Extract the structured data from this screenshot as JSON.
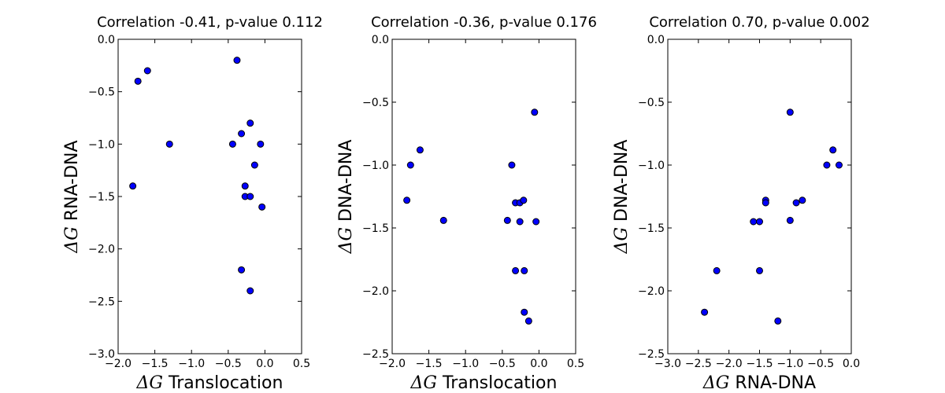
{
  "chart_data": [
    {
      "type": "scatter",
      "title": "Correlation -0.41, p-value 0.112",
      "xlabel_symbol": "ΔG",
      "xlabel_text": " Translocation",
      "ylabel_symbol": "ΔG",
      "ylabel_text": " RNA-DNA",
      "xlim": [
        -2.0,
        0.5
      ],
      "ylim": [
        -3.0,
        0.0
      ],
      "xticks": [
        -2.0,
        -1.5,
        -1.0,
        -0.5,
        0.0,
        0.5
      ],
      "xtick_labels": [
        "−2.0",
        "−1.5",
        "−1.0",
        "−0.5",
        "0.0",
        "0.5"
      ],
      "yticks": [
        -3.0,
        -2.5,
        -2.0,
        -1.5,
        -1.0,
        -0.5,
        0.0
      ],
      "ytick_labels": [
        "−3.0",
        "−2.5",
        "−2.0",
        "−1.5",
        "−1.0",
        "−0.5",
        "0.0"
      ],
      "color": "#0000ff",
      "points": [
        {
          "x": -1.8,
          "y": -1.4
        },
        {
          "x": -1.73,
          "y": -0.4
        },
        {
          "x": -1.6,
          "y": -0.3
        },
        {
          "x": -1.3,
          "y": -1.0
        },
        {
          "x": -0.44,
          "y": -1.0
        },
        {
          "x": -0.38,
          "y": -0.2
        },
        {
          "x": -0.32,
          "y": -0.9
        },
        {
          "x": -0.32,
          "y": -2.2
        },
        {
          "x": -0.27,
          "y": -1.4
        },
        {
          "x": -0.27,
          "y": -1.5
        },
        {
          "x": -0.2,
          "y": -0.8
        },
        {
          "x": -0.2,
          "y": -1.5
        },
        {
          "x": -0.2,
          "y": -2.4
        },
        {
          "x": -0.14,
          "y": -1.2
        },
        {
          "x": -0.06,
          "y": -1.0
        },
        {
          "x": -0.04,
          "y": -1.6
        }
      ]
    },
    {
      "type": "scatter",
      "title": "Correlation -0.36, p-value 0.176",
      "xlabel_symbol": "ΔG",
      "xlabel_text": " Translocation",
      "ylabel_symbol": "ΔG",
      "ylabel_text": " DNA-DNA",
      "xlim": [
        -2.0,
        0.5
      ],
      "ylim": [
        -2.5,
        0.0
      ],
      "xticks": [
        -2.0,
        -1.5,
        -1.0,
        -0.5,
        0.0,
        0.5
      ],
      "xtick_labels": [
        "−2.0",
        "−1.5",
        "−1.0",
        "−0.5",
        "0.0",
        "0.5"
      ],
      "yticks": [
        -2.5,
        -2.0,
        -1.5,
        -1.0,
        -0.5,
        0.0
      ],
      "ytick_labels": [
        "−2.5",
        "−2.0",
        "−1.5",
        "−1.0",
        "−0.5",
        "0.0"
      ],
      "color": "#0000ff",
      "points": [
        {
          "x": -1.8,
          "y": -1.28
        },
        {
          "x": -1.75,
          "y": -1.0
        },
        {
          "x": -1.62,
          "y": -0.88
        },
        {
          "x": -1.3,
          "y": -1.44
        },
        {
          "x": -0.43,
          "y": -1.44
        },
        {
          "x": -0.37,
          "y": -1.0
        },
        {
          "x": -0.32,
          "y": -1.3
        },
        {
          "x": -0.32,
          "y": -1.84
        },
        {
          "x": -0.26,
          "y": -1.45
        },
        {
          "x": -0.26,
          "y": -1.3
        },
        {
          "x": -0.21,
          "y": -1.28
        },
        {
          "x": -0.2,
          "y": -1.84
        },
        {
          "x": -0.2,
          "y": -2.17
        },
        {
          "x": -0.14,
          "y": -2.24
        },
        {
          "x": -0.06,
          "y": -0.58
        },
        {
          "x": -0.04,
          "y": -1.45
        }
      ]
    },
    {
      "type": "scatter",
      "title": "Correlation 0.70, p-value 0.002",
      "xlabel_symbol": "ΔG",
      "xlabel_text": " RNA-DNA",
      "ylabel_symbol": "ΔG",
      "ylabel_text": " DNA-DNA",
      "xlim": [
        -3.0,
        0.0
      ],
      "ylim": [
        -2.5,
        0.0
      ],
      "xticks": [
        -3.0,
        -2.5,
        -2.0,
        -1.5,
        -1.0,
        -0.5,
        0.0
      ],
      "xtick_labels": [
        "−3.0",
        "−2.5",
        "−2.0",
        "−1.5",
        "−1.0",
        "−0.5",
        "0.0"
      ],
      "yticks": [
        -2.5,
        -2.0,
        -1.5,
        -1.0,
        -0.5,
        0.0
      ],
      "ytick_labels": [
        "−2.5",
        "−2.0",
        "−1.5",
        "−1.0",
        "−0.5",
        "0.0"
      ],
      "color": "#0000ff",
      "points": [
        {
          "x": -2.4,
          "y": -2.17
        },
        {
          "x": -2.2,
          "y": -1.84
        },
        {
          "x": -1.6,
          "y": -1.45
        },
        {
          "x": -1.5,
          "y": -1.45
        },
        {
          "x": -1.5,
          "y": -1.84
        },
        {
          "x": -1.4,
          "y": -1.28
        },
        {
          "x": -1.4,
          "y": -1.3
        },
        {
          "x": -1.2,
          "y": -2.24
        },
        {
          "x": -1.0,
          "y": -0.58
        },
        {
          "x": -1.0,
          "y": -1.44
        },
        {
          "x": -0.9,
          "y": -1.3
        },
        {
          "x": -0.8,
          "y": -1.28
        },
        {
          "x": -0.4,
          "y": -1.0
        },
        {
          "x": -0.3,
          "y": -0.88
        },
        {
          "x": -0.2,
          "y": -1.0
        }
      ]
    }
  ]
}
